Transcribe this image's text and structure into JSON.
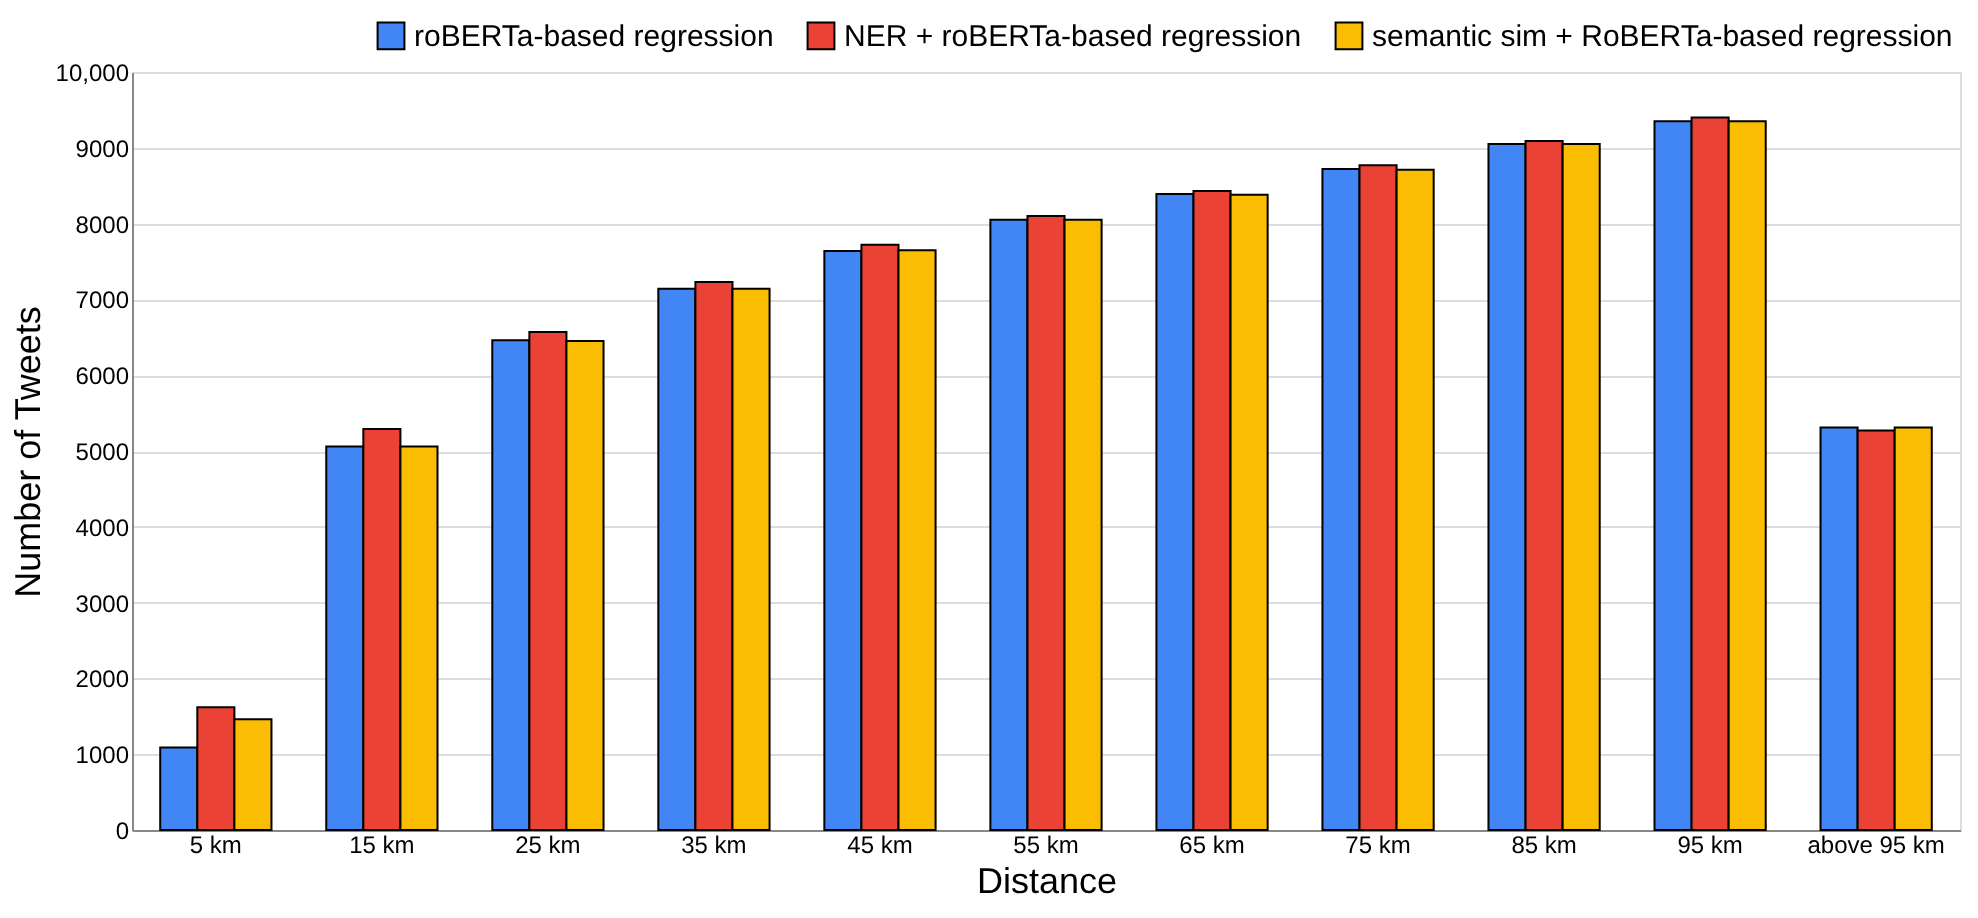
{
  "chart_data": {
    "type": "bar",
    "xlabel": "Distance",
    "ylabel": "Number of Tweets",
    "categories": [
      "5 km",
      "15 km",
      "25 km",
      "35 km",
      "45 km",
      "55 km",
      "65 km",
      "75 km",
      "85 km",
      "95 km",
      "above 95 km"
    ],
    "series": [
      {
        "name": "roBERTa-based regression",
        "color": "#4285f4",
        "values": [
          1090,
          5060,
          6460,
          7140,
          7640,
          8050,
          8390,
          8720,
          9050,
          9350,
          5310
        ]
      },
      {
        "name": "NER + roBERTa-based regression",
        "color": "#ea4335",
        "values": [
          1620,
          5290,
          6570,
          7230,
          7720,
          8100,
          8430,
          8770,
          9090,
          9400,
          5270
        ]
      },
      {
        "name": "semantic sim + RoBERTa-based regression",
        "color": "#fbbc04",
        "values": [
          1460,
          5060,
          6450,
          7140,
          7650,
          8050,
          8380,
          8710,
          9050,
          9350,
          5310
        ]
      }
    ],
    "ylim": [
      0,
      10000
    ],
    "yticks": [
      0,
      1000,
      2000,
      3000,
      4000,
      5000,
      6000,
      7000,
      8000,
      9000,
      {
        "value": 10000,
        "label": "10,000"
      }
    ],
    "grid": "y",
    "legend": "top right"
  }
}
